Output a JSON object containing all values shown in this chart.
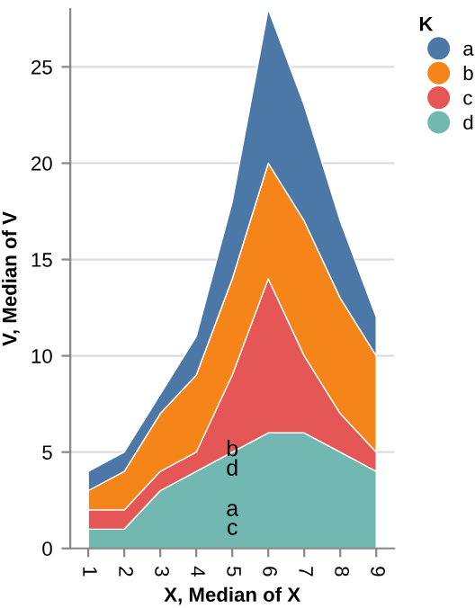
{
  "chart_data": {
    "type": "area",
    "stacked": true,
    "xlabel": "X, Median of X",
    "ylabel": "V, Median of V",
    "legend_title": "K",
    "x": [
      1,
      2,
      3,
      4,
      5,
      6,
      7,
      8,
      9
    ],
    "series": [
      {
        "name": "d",
        "color": "#72b7b2",
        "values": [
          1,
          1,
          3,
          4,
          5,
          6,
          6,
          5,
          4
        ]
      },
      {
        "name": "c",
        "color": "#e45756",
        "values": [
          1,
          1,
          1,
          1,
          4,
          8,
          4,
          2,
          1
        ]
      },
      {
        "name": "b",
        "color": "#f58518",
        "values": [
          1,
          2,
          3,
          4,
          5,
          6,
          7,
          6,
          5
        ]
      },
      {
        "name": "a",
        "color": "#4c78a8",
        "values": [
          1,
          1,
          1,
          2,
          4,
          8,
          6,
          4,
          2
        ]
      }
    ],
    "annotations": [
      "b",
      "d",
      "a",
      "c"
    ],
    "xlim": [
      0.5,
      9.5
    ],
    "xticks": [
      1,
      2,
      3,
      4,
      5,
      6,
      7,
      8,
      9
    ],
    "ylim": [
      0,
      28
    ],
    "yticks": [
      0,
      5,
      10,
      15,
      20,
      25
    ],
    "grid": "y",
    "legend": "top right"
  }
}
